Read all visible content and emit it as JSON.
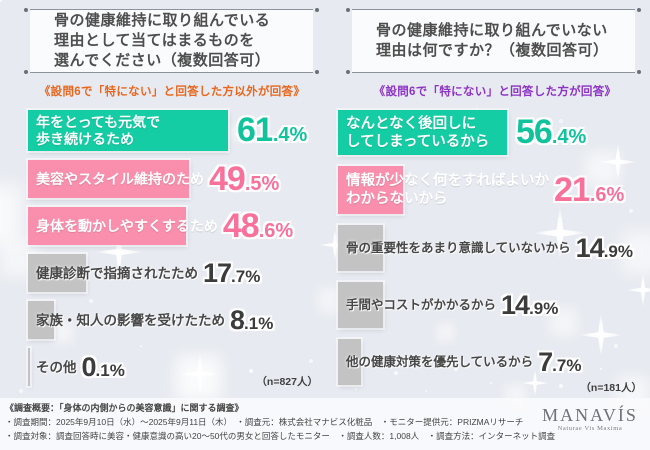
{
  "colors": {
    "teal": "#15cda4",
    "pink": "#f98fad",
    "gray": "#c3c3c3",
    "subtitle_left_orange": "#e8671f",
    "subtitle_right_purple": "#8d33c4"
  },
  "chart_data": [
    {
      "type": "bar",
      "title": "骨の健康維持に取り組んでいる理由として当てはまるものを選んでください（複数回答可）",
      "title_lines": [
        "骨の健康維持に取り組んでいる",
        "理由として当てはまるものを",
        "選んでください（複数回答可）"
      ],
      "subtitle": "《設問6で「特にない」と回答した方以外が回答》",
      "n_label": "（n=827人）",
      "unit": "%",
      "xlim": [
        0,
        100
      ],
      "categories": [
        "年をとっても元気で歩き続けるため",
        "美容やスタイル維持のため",
        "身体を動かしやすくするため",
        "健康診断で指摘されたため",
        "家族・知人の影響を受けたため",
        "その他"
      ],
      "values": [
        61.4,
        49.5,
        48.6,
        17.7,
        8.1,
        0.1
      ],
      "bars": [
        {
          "label_lines": [
            "年をとっても元気で",
            "歩き続けるため"
          ],
          "value": 61.4,
          "color": "teal"
        },
        {
          "label_lines": [
            "美容やスタイル維持のため"
          ],
          "value": 49.5,
          "color": "pink"
        },
        {
          "label_lines": [
            "身体を動かしやすくするため"
          ],
          "value": 48.6,
          "color": "pink"
        },
        {
          "label_lines": [
            "健康診断で指摘されたため"
          ],
          "value": 17.7,
          "color": "gray"
        },
        {
          "label_lines": [
            "家族・知人の影響を受けたため"
          ],
          "value": 8.1,
          "color": "gray"
        },
        {
          "label_lines": [
            "その他"
          ],
          "value": 0.1,
          "color": "gray"
        }
      ]
    },
    {
      "type": "bar",
      "title": "骨の健康維持に取り組んでいない理由は何ですか？（複数回答可）",
      "title_lines": [
        "骨の健康維持に取り組んでいない",
        "理由は何ですか？（複数回答可）"
      ],
      "subtitle": "《設問6で「特にない」と回答した方が回答》",
      "n_label": "（n=181人）",
      "unit": "%",
      "xlim": [
        0,
        100
      ],
      "categories": [
        "なんとなく後回しにしてしまっているから",
        "情報が少なく何をすればよいかわからないから",
        "骨の重要性をあまり意識していないから",
        "手間やコストがかかるから",
        "他の健康対策を優先しているから"
      ],
      "values": [
        56.4,
        21.6,
        14.9,
        14.9,
        7.7
      ],
      "bars": [
        {
          "label_lines": [
            "なんとなく後回しに",
            "してしまっているから"
          ],
          "value": 56.4,
          "color": "teal"
        },
        {
          "label_lines": [
            "情報が少なく何をすればよいか",
            "わからないから"
          ],
          "value": 21.6,
          "color": "pink"
        },
        {
          "label_lines": [
            "骨の重要性をあまり意識していないから"
          ],
          "value": 14.9,
          "color": "gray"
        },
        {
          "label_lines": [
            "手間やコストがかかるから"
          ],
          "value": 14.9,
          "color": "gray"
        },
        {
          "label_lines": [
            "他の健康対策を優先しているから"
          ],
          "value": 7.7,
          "color": "gray"
        }
      ]
    }
  ],
  "footer": {
    "line1": "《調査概要：「身体の内側からの美容意識」に関する調査》",
    "line2": "・調査期間：2025年9月10日（水）～2025年9月11日（木）　・調査元：株式会社マナビス化粧品　・モニター提供元：PRIZMAリサーチ",
    "line3": "・調査対象：調査回答時に美容・健康意識の高い20～50代の男女と回答したモニター　・調査人数：1,008人　・調査方法：インターネット調査",
    "logo": "MANAVÍS",
    "logo_tagline": "Naturae Vis Maxima"
  }
}
